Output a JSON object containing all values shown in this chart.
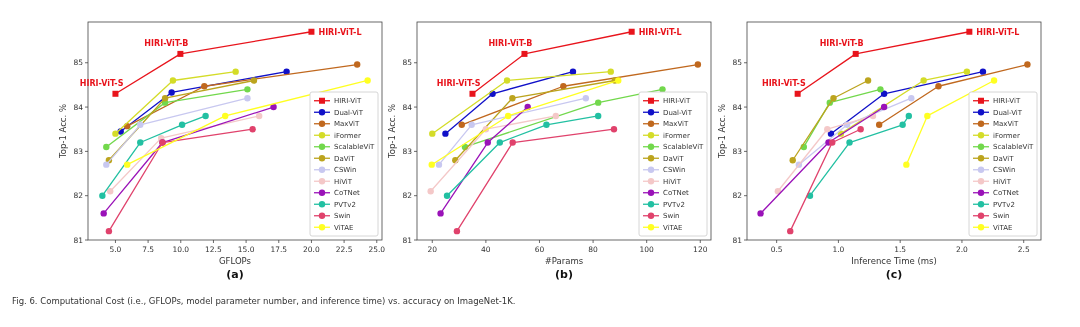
{
  "chart_data": [
    {
      "type": "line",
      "title": "(a)",
      "xlabel": "GFLOPs",
      "ylabel": "Top-1 Acc. %",
      "xlim": [
        2.9,
        25.4
      ],
      "ylim": [
        81,
        85.92
      ],
      "xticks": [
        {
          "value": 5,
          "label": "5.0"
        },
        7.5,
        {
          "value": 10,
          "label": "10.0"
        },
        12.5,
        {
          "value": 15,
          "label": "15.0"
        },
        17.5,
        {
          "value": 20,
          "label": "20.0"
        },
        22.5,
        {
          "value": 25,
          "label": "25.0"
        }
      ],
      "yticks": [
        81,
        82,
        83,
        84,
        85
      ],
      "marker": "circle",
      "legend": "right",
      "grid": false,
      "annotations": [
        {
          "text": "HIRI-ViT-S",
          "x": 5.0,
          "y": 84.3
        },
        {
          "text": "HIRI-ViT-B",
          "x": 9.97,
          "y": 85.2
        },
        {
          "text": "HIRI-ViT-L",
          "x": 20.0,
          "y": 85.7
        },
        "Fig. 6. Computational Cost (i.e., GFLOPs, model parameter number, and inference time) vs. accuracy on ImageNet-1K."
      ],
      "series": [
        {
          "name": "HIRI-ViT",
          "color": "#e8141c",
          "marker": "square",
          "x": [
            5.0,
            9.97,
            20.0
          ],
          "values": [
            84.3,
            85.2,
            85.7
          ]
        },
        {
          "name": "Dual-ViT",
          "color": "#1010c8",
          "x": [
            5.4,
            9.3,
            18.1
          ],
          "values": [
            83.45,
            84.33,
            84.8
          ]
        },
        {
          "name": "MaxViT",
          "color": "#c0681e",
          "x": [
            5.9,
            11.8,
            23.5
          ],
          "values": [
            83.57,
            84.47,
            84.96
          ]
        },
        {
          "name": "iFormer",
          "color": "#d4dc28",
          "x": [
            5.0,
            9.4,
            14.2
          ],
          "values": [
            83.4,
            84.6,
            84.8
          ]
        },
        {
          "name": "ScalableViT",
          "color": "#72d84c",
          "x": [
            4.3,
            8.8,
            15.1
          ],
          "values": [
            83.1,
            84.1,
            84.4
          ]
        },
        {
          "name": "DaViT",
          "color": "#bca41e",
          "x": [
            4.5,
            8.8,
            15.6
          ],
          "values": [
            82.8,
            84.2,
            84.6
          ]
        },
        {
          "name": "CSWin",
          "color": "#c8c8f0",
          "x": [
            4.3,
            6.9,
            15.1
          ],
          "values": [
            82.7,
            83.6,
            84.2
          ]
        },
        {
          "name": "HiViT",
          "color": "#f4c8c8",
          "x": [
            4.6,
            8.5,
            16.0
          ],
          "values": [
            82.1,
            83.3,
            83.8
          ]
        },
        {
          "name": "CoTNet",
          "color": "#9a12b8",
          "x": [
            4.1,
            8.6,
            17.1
          ],
          "values": [
            81.6,
            83.2,
            84.0
          ]
        },
        {
          "name": "PVTv2",
          "color": "#22c0a2",
          "x": [
            4.0,
            6.9,
            10.1,
            11.9
          ],
          "values": [
            82.0,
            83.2,
            83.6,
            83.8
          ]
        },
        {
          "name": "Swin",
          "color": "#e0426c",
          "x": [
            4.5,
            8.6,
            15.5
          ],
          "values": [
            81.2,
            83.2,
            83.5
          ]
        },
        {
          "name": "ViTAE",
          "color": "#ffff22",
          "x": [
            5.9,
            13.4,
            24.3
          ],
          "values": [
            82.7,
            83.8,
            84.6
          ]
        }
      ]
    },
    {
      "type": "line",
      "title": "(b)",
      "xlabel": "#Params",
      "ylabel": "Top-1 Acc. %",
      "xlim": [
        14.3,
        124
      ],
      "ylim": [
        81,
        85.92
      ],
      "xticks": [
        20,
        40,
        60,
        80,
        100,
        120
      ],
      "yticks": [
        81,
        82,
        83,
        84,
        85
      ],
      "marker": "circle",
      "legend": "right",
      "grid": false,
      "annotations": [
        {
          "text": "HIRI-ViT-S",
          "x": 35,
          "y": 84.3
        },
        {
          "text": "HIRI-ViT-B",
          "x": 54.4,
          "y": 85.2
        },
        {
          "text": "HIRI-ViT-L",
          "x": 94.4,
          "y": 85.7
        }
      ],
      "series": [
        {
          "name": "HIRI-ViT",
          "color": "#e8141c",
          "marker": "square",
          "x": [
            35,
            54.4,
            94.4
          ],
          "values": [
            84.3,
            85.2,
            85.7
          ]
        },
        {
          "name": "Dual-ViT",
          "color": "#1010c8",
          "x": [
            24.9,
            42.5,
            72.5
          ],
          "values": [
            83.4,
            84.3,
            84.8
          ]
        },
        {
          "name": "MaxViT",
          "color": "#c0681e",
          "x": [
            31,
            68.9,
            119.1
          ],
          "values": [
            83.6,
            84.47,
            84.96
          ]
        },
        {
          "name": "iFormer",
          "color": "#d4dc28",
          "x": [
            20,
            47.9,
            86.6
          ],
          "values": [
            83.4,
            84.6,
            84.8
          ]
        },
        {
          "name": "ScalableViT",
          "color": "#72d84c",
          "x": [
            32.2,
            81.9,
            105.9
          ],
          "values": [
            83.1,
            84.1,
            84.4
          ]
        },
        {
          "name": "DaViT",
          "color": "#bca41e",
          "x": [
            28.6,
            49.9,
            88.1
          ],
          "values": [
            82.8,
            84.2,
            84.6
          ]
        },
        {
          "name": "CSWin",
          "color": "#c8c8f0",
          "x": [
            22.5,
            34.7,
            77.3
          ],
          "values": [
            82.7,
            83.6,
            84.2
          ]
        },
        {
          "name": "HiViT",
          "color": "#f4c8c8",
          "x": [
            19.4,
            40,
            66.1
          ],
          "values": [
            82.1,
            83.5,
            83.8
          ]
        },
        {
          "name": "CoTNet",
          "color": "#9a12b8",
          "x": [
            23.1,
            40.7,
            55.6
          ],
          "values": [
            81.6,
            83.2,
            84.0
          ]
        },
        {
          "name": "PVTv2",
          "color": "#22c0a2",
          "x": [
            25.5,
            45.2,
            62.6,
            81.9
          ],
          "values": [
            82.0,
            83.2,
            83.6,
            83.8
          ]
        },
        {
          "name": "Swin",
          "color": "#e0426c",
          "x": [
            29.2,
            50,
            87.8
          ],
          "values": [
            81.2,
            83.2,
            83.5
          ]
        },
        {
          "name": "ViTAE",
          "color": "#ffff22",
          "x": [
            19.8,
            48.3,
            89.4
          ],
          "values": [
            82.7,
            83.8,
            84.6
          ]
        }
      ]
    },
    {
      "type": "line",
      "title": "(c)",
      "xlabel": "Inference Time (ms)",
      "ylabel": "Top-1 Acc. %",
      "xlim": [
        0.26,
        2.64
      ],
      "ylim": [
        81,
        85.92
      ],
      "xticks": [
        0.5,
        {
          "value": 1,
          "label": "1.0"
        },
        1.5,
        {
          "value": 2,
          "label": "2.0"
        },
        2.5
      ],
      "yticks": [
        81,
        82,
        83,
        84,
        85
      ],
      "marker": "circle",
      "legend": "right",
      "grid": false,
      "annotations": [
        {
          "text": "HIRI-ViT-S",
          "x": 0.67,
          "y": 84.3
        },
        {
          "text": "HIRI-ViT-B",
          "x": 1.14,
          "y": 85.2
        },
        {
          "text": "HIRI-ViT-L",
          "x": 2.06,
          "y": 85.7
        }
      ],
      "series": [
        {
          "name": "HIRI-ViT",
          "color": "#e8141c",
          "marker": "square",
          "x": [
            0.67,
            1.14,
            2.06
          ],
          "values": [
            84.3,
            85.2,
            85.7
          ]
        },
        {
          "name": "Dual-ViT",
          "color": "#1010c8",
          "x": [
            0.94,
            1.37,
            2.17
          ],
          "values": [
            83.4,
            84.3,
            84.8
          ]
        },
        {
          "name": "MaxViT",
          "color": "#c0681e",
          "x": [
            1.33,
            1.81,
            2.53
          ],
          "values": [
            83.6,
            84.47,
            84.96
          ]
        },
        {
          "name": "iFormer",
          "color": "#d4dc28",
          "x": [
            1.02,
            1.69,
            2.04
          ],
          "values": [
            83.4,
            84.6,
            84.8
          ]
        },
        {
          "name": "ScalableViT",
          "color": "#72d84c",
          "x": [
            0.72,
            0.93,
            1.34
          ],
          "values": [
            83.1,
            84.1,
            84.4
          ]
        },
        {
          "name": "DaViT",
          "color": "#bca41e",
          "x": [
            0.63,
            0.96,
            1.24
          ],
          "values": [
            82.8,
            84.2,
            84.6
          ]
        },
        {
          "name": "CSWin",
          "color": "#c8c8f0",
          "x": [
            0.68,
            1.07,
            1.59
          ],
          "values": [
            82.7,
            83.6,
            84.2
          ]
        },
        {
          "name": "HiViT",
          "color": "#f4c8c8",
          "x": [
            0.51,
            0.91,
            1.28
          ],
          "values": [
            82.1,
            83.5,
            83.8
          ]
        },
        {
          "name": "CoTNet",
          "color": "#9a12b8",
          "x": [
            0.37,
            0.92,
            1.37
          ],
          "values": [
            81.6,
            83.2,
            84.0
          ]
        },
        {
          "name": "PVTv2",
          "color": "#22c0a2",
          "x": [
            0.77,
            1.09,
            1.52,
            1.57
          ],
          "values": [
            82.0,
            83.2,
            83.6,
            83.8
          ]
        },
        {
          "name": "Swin",
          "color": "#e0426c",
          "x": [
            0.61,
            0.95,
            1.18
          ],
          "values": [
            81.2,
            83.2,
            83.5
          ]
        },
        {
          "name": "ViTAE",
          "color": "#ffff22",
          "x": [
            1.55,
            1.72,
            2.26
          ],
          "values": [
            82.7,
            83.8,
            84.6
          ]
        }
      ]
    }
  ]
}
